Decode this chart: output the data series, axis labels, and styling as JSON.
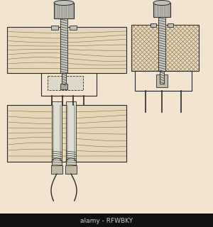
{
  "background_color": "#f2e4cf",
  "watermark_text": "alamy - RFWBKY",
  "fig_width": 3.0,
  "fig_height": 3.2,
  "dpi": 100,
  "line_color": "#2a2a2a",
  "wood_color": "#e8d8b8",
  "wood_line_color": "#7a6a50",
  "metal_light": "#d0cfc0",
  "metal_dark": "#aaa090",
  "black_bar_color": "#111111",
  "watermark_bar_text_color": "#cccccc"
}
